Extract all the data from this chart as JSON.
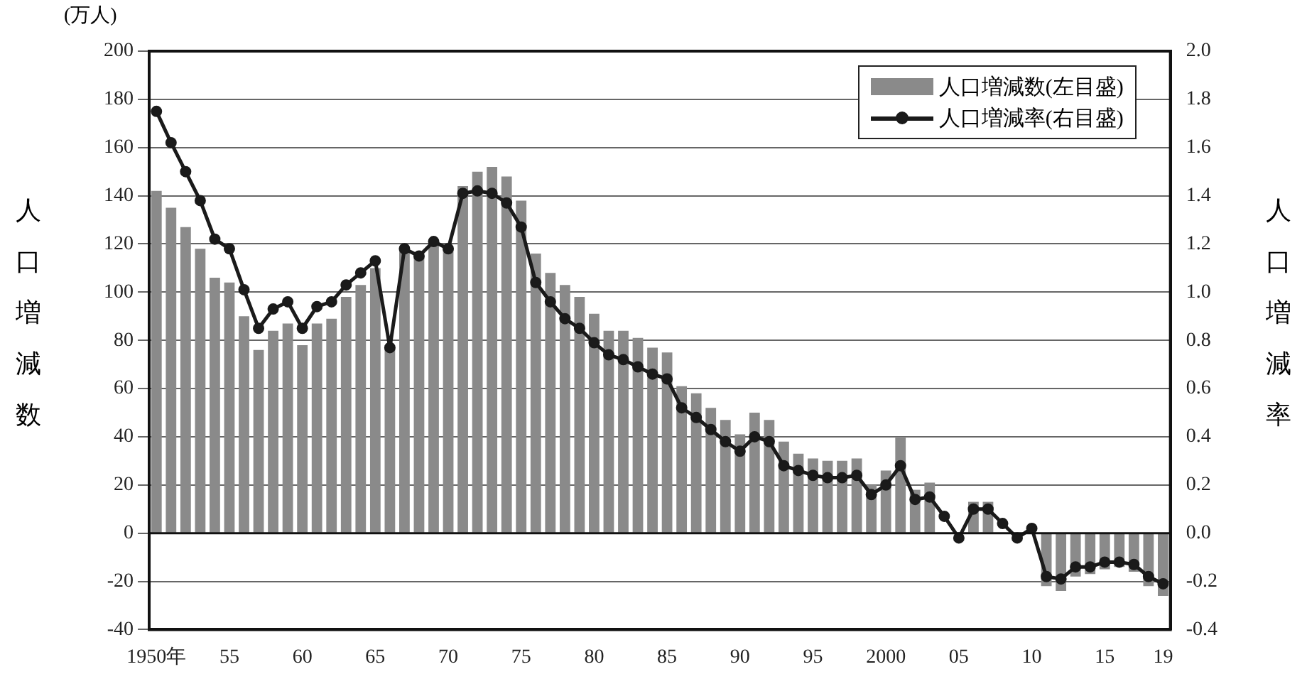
{
  "chart_data": {
    "type": "bar",
    "ylabel": "人口増減数",
    "y2label": "人口増減率",
    "annotations": [
      "(万人)"
    ],
    "categories": [
      "1950年",
      null,
      null,
      null,
      null,
      "55",
      null,
      null,
      null,
      null,
      "60",
      null,
      null,
      null,
      null,
      "65",
      null,
      null,
      null,
      null,
      "70",
      null,
      null,
      null,
      null,
      "75",
      null,
      null,
      null,
      null,
      "80",
      null,
      null,
      null,
      null,
      "85",
      null,
      null,
      null,
      null,
      "90",
      null,
      null,
      null,
      null,
      "95",
      null,
      null,
      null,
      null,
      "2000",
      null,
      null,
      null,
      null,
      "05",
      null,
      null,
      null,
      null,
      "10",
      null,
      null,
      null,
      null,
      "15",
      null,
      null,
      null,
      "19"
    ],
    "series": [
      {
        "name": "人口増減数(左目盛)",
        "color": "#8a8a8a",
        "values": [
          142,
          135,
          127,
          118,
          106,
          104,
          90,
          76,
          84,
          87,
          78,
          87,
          89,
          98,
          103,
          110,
          78,
          118,
          115,
          120,
          118,
          144,
          150,
          152,
          148,
          138,
          116,
          108,
          103,
          98,
          91,
          84,
          84,
          81,
          77,
          75,
          61,
          58,
          52,
          47,
          41,
          50,
          47,
          38,
          33,
          31,
          30,
          30,
          31,
          20,
          26,
          40,
          18,
          21,
          null,
          null,
          13,
          13,
          null,
          null,
          null,
          -22,
          -24,
          -18,
          -17,
          -15,
          -14,
          -16,
          -22,
          -26
        ]
      },
      {
        "name": "人口増減率(右目盛)",
        "type": "line",
        "axis": "y2",
        "color": "#1a1a1a",
        "marker": "circle",
        "values": [
          1.75,
          1.62,
          1.5,
          1.38,
          1.22,
          1.18,
          1.01,
          0.85,
          0.93,
          0.96,
          0.85,
          0.94,
          0.96,
          1.03,
          1.08,
          1.13,
          0.77,
          1.18,
          1.15,
          1.21,
          1.18,
          1.41,
          1.42,
          1.41,
          1.37,
          1.27,
          1.04,
          0.96,
          0.89,
          0.85,
          0.79,
          0.74,
          0.72,
          0.69,
          0.66,
          0.64,
          0.52,
          0.48,
          0.43,
          0.38,
          0.34,
          0.4,
          0.38,
          0.28,
          0.26,
          0.24,
          0.23,
          0.23,
          0.24,
          0.16,
          0.2,
          0.28,
          0.14,
          0.15,
          0.07,
          -0.02,
          0.1,
          0.1,
          0.04,
          -0.02,
          0.02,
          -0.18,
          -0.19,
          -0.14,
          -0.14,
          -0.12,
          -0.12,
          -0.13,
          -0.18,
          -0.21
        ]
      }
    ],
    "ylim": [
      -40,
      200
    ],
    "yticks": [
      -40,
      -20,
      0,
      20,
      40,
      60,
      80,
      100,
      120,
      140,
      160,
      180,
      200
    ],
    "y2lim": [
      -0.4,
      2.0
    ],
    "y2ticks": [
      -0.4,
      -0.2,
      {
        "value": 0,
        "label": "0.0"
      },
      0.2,
      0.4,
      0.6,
      0.8,
      {
        "value": 1,
        "label": "1.0"
      },
      1.2,
      1.4,
      1.6,
      1.8,
      {
        "value": 2,
        "label": "2.0"
      }
    ],
    "grid": "y",
    "legend": "top right"
  }
}
